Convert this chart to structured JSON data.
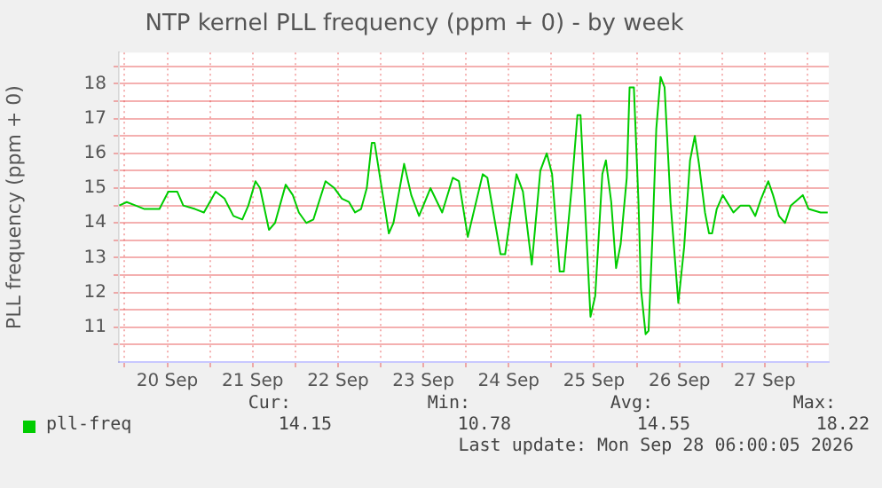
{
  "chart_data": {
    "type": "line",
    "title": "NTP kernel PLL frequency (ppm + 0) - by week",
    "ylabel": "PLL frequency (ppm + 0)",
    "x": [
      "2026-09-19T22:30",
      "2026-09-20T00:36",
      "2026-09-20T03:06",
      "2026-09-20T05:36",
      "2026-09-20T09:48",
      "2026-09-20T12:18",
      "2026-09-20T14:48",
      "2026-09-20T16:30",
      "2026-09-20T19:48",
      "2026-09-20T22:18",
      "2026-09-21T01:36",
      "2026-09-21T04:06",
      "2026-09-21T06:36",
      "2026-09-21T09:06",
      "2026-09-21T10:48",
      "2026-09-21T12:48",
      "2026-09-21T14:06",
      "2026-09-21T16:36",
      "2026-09-21T18:18",
      "2026-09-21T21:18",
      "2026-09-21T23:18",
      "2026-09-22T01:00",
      "2026-09-22T03:06",
      "2026-09-22T05:06",
      "2026-09-22T08:30",
      "2026-09-22T11:00",
      "2026-09-22T13:06",
      "2026-09-22T15:06",
      "2026-09-22T16:48",
      "2026-09-22T18:30",
      "2026-09-22T20:06",
      "2026-09-22T21:30",
      "2026-09-22T22:18",
      "2026-09-23T00:18",
      "2026-09-23T02:18",
      "2026-09-23T03:36",
      "2026-09-23T06:36",
      "2026-09-23T08:36",
      "2026-09-23T10:48",
      "2026-09-23T14:00",
      "2026-09-23T17:18",
      "2026-09-23T20:18",
      "2026-09-23T22:00",
      "2026-09-24T00:30",
      "2026-09-24T04:42",
      "2026-09-24T06:00",
      "2026-09-24T09:42",
      "2026-09-24T11:00",
      "2026-09-24T14:12",
      "2026-09-24T16:00",
      "2026-09-24T18:30",
      "2026-09-24T20:54",
      "2026-09-24T22:42",
      "2026-09-25T00:12",
      "2026-09-25T02:20",
      "2026-09-25T03:30",
      "2026-09-25T05:42",
      "2026-09-25T07:20",
      "2026-09-25T08:12",
      "2026-09-25T11:00",
      "2026-09-25T12:20",
      "2026-09-25T14:20",
      "2026-09-25T15:20",
      "2026-09-25T16:50",
      "2026-09-25T18:12",
      "2026-09-25T19:30",
      "2026-09-25T21:12",
      "2026-09-25T22:00",
      "2026-09-25T23:12",
      "2026-09-26T00:30",
      "2026-09-26T01:12",
      "2026-09-26T02:30",
      "2026-09-26T03:20",
      "2026-09-26T04:30",
      "2026-09-26T05:30",
      "2026-09-26T06:42",
      "2026-09-26T07:50",
      "2026-09-26T09:30",
      "2026-09-26T11:42",
      "2026-09-26T13:20",
      "2026-09-26T15:00",
      "2026-09-26T16:20",
      "2026-09-26T17:30",
      "2026-09-26T19:12",
      "2026-09-26T20:20",
      "2026-09-26T21:12",
      "2026-09-26T22:30",
      "2026-09-27T00:12",
      "2026-09-27T03:12",
      "2026-09-27T05:12",
      "2026-09-27T07:42",
      "2026-09-27T09:20",
      "2026-09-27T11:00",
      "2026-09-27T13:00",
      "2026-09-27T14:20",
      "2026-09-27T16:00",
      "2026-09-27T17:42",
      "2026-09-27T19:20",
      "2026-09-27T22:42",
      "2026-09-28T00:20",
      "2026-09-28T03:42",
      "2026-09-28T05:42"
    ],
    "series": [
      {
        "name": "pll-freq",
        "color": "#00cc00",
        "values": [
          14.5,
          14.6,
          14.5,
          14.4,
          14.4,
          14.9,
          14.9,
          14.5,
          14.4,
          14.3,
          14.9,
          14.7,
          14.2,
          14.1,
          14.5,
          15.2,
          15.0,
          13.8,
          14.0,
          15.1,
          14.8,
          14.3,
          14.0,
          14.1,
          15.2,
          15.0,
          14.7,
          14.6,
          14.3,
          14.4,
          15.0,
          16.3,
          16.3,
          15.0,
          13.7,
          14.0,
          15.7,
          14.8,
          14.2,
          15.0,
          14.3,
          15.3,
          15.2,
          13.6,
          15.4,
          15.3,
          13.1,
          13.1,
          15.4,
          14.9,
          12.8,
          15.5,
          16.0,
          15.4,
          12.6,
          12.6,
          15.0,
          17.1,
          17.1,
          11.3,
          11.9,
          15.4,
          15.8,
          14.6,
          12.7,
          13.4,
          15.3,
          17.9,
          17.9,
          14.6,
          12.1,
          10.8,
          10.9,
          13.8,
          16.7,
          18.2,
          17.9,
          14.6,
          11.7,
          13.3,
          15.8,
          16.5,
          15.7,
          14.3,
          13.7,
          13.7,
          14.4,
          14.8,
          14.3,
          14.5,
          14.5,
          14.2,
          14.7,
          15.2,
          14.8,
          14.2,
          14.0,
          14.5,
          14.8,
          14.4,
          14.3,
          14.3
        ]
      }
    ],
    "xlim": [
      "2026-09-19T22:24",
      "2026-09-28T06:00"
    ],
    "xticks": [
      {
        "value": "2026-09-20T00:00",
        "label": null
      },
      {
        "value": "2026-09-20T12:00",
        "label": "20 Sep"
      },
      {
        "value": "2026-09-21T00:00",
        "label": null
      },
      {
        "value": "2026-09-21T12:00",
        "label": "21 Sep"
      },
      {
        "value": "2026-09-22T00:00",
        "label": null
      },
      {
        "value": "2026-09-22T12:00",
        "label": "22 Sep"
      },
      {
        "value": "2026-09-23T00:00",
        "label": null
      },
      {
        "value": "2026-09-23T12:00",
        "label": "23 Sep"
      },
      {
        "value": "2026-09-24T00:00",
        "label": null
      },
      {
        "value": "2026-09-24T12:00",
        "label": "24 Sep"
      },
      {
        "value": "2026-09-25T00:00",
        "label": null
      },
      {
        "value": "2026-09-25T12:00",
        "label": "25 Sep"
      },
      {
        "value": "2026-09-26T00:00",
        "label": null
      },
      {
        "value": "2026-09-26T12:00",
        "label": "26 Sep"
      },
      {
        "value": "2026-09-27T00:00",
        "label": null
      },
      {
        "value": "2026-09-27T12:00",
        "label": "27 Sep"
      },
      {
        "value": "2026-09-28T00:00",
        "label": null
      }
    ],
    "ylim": [
      10,
      18.9
    ],
    "yticks": [
      {
        "value": 10.5,
        "label": null
      },
      11,
      {
        "value": 11.5,
        "label": null
      },
      12,
      {
        "value": 12.5,
        "label": null
      },
      13,
      {
        "value": 13.5,
        "label": null
      },
      14,
      {
        "value": 14.5,
        "label": null
      },
      15,
      {
        "value": 15.5,
        "label": null
      },
      16,
      {
        "value": 16.5,
        "label": null
      },
      17,
      {
        "value": 17.5,
        "label": null
      },
      18,
      {
        "value": 18.5,
        "label": null
      }
    ],
    "grid": true,
    "legend": "bottom left",
    "annotations": [
      "Cur:",
      "Min:",
      "Avg:",
      "Max:",
      "14.15",
      "10.78",
      "14.55",
      "18.22",
      "Last update: Mon Sep 28 06:00:05 2026"
    ]
  }
}
